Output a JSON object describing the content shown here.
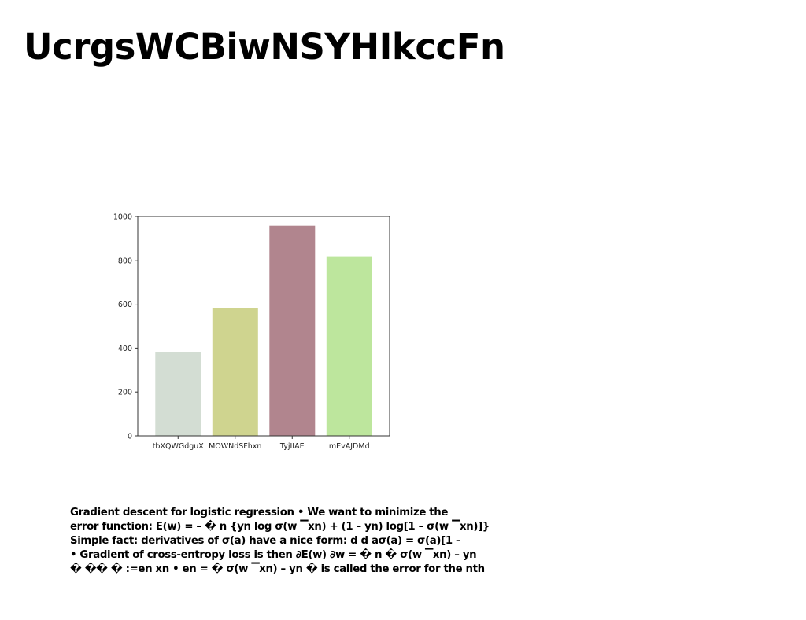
{
  "slide": {
    "title": "UcrgsWCBiwNSYHIkccFn"
  },
  "chart_data": {
    "type": "bar",
    "categories": [
      "tbXQWGdguX",
      "MOWNdSFhxn",
      "TyjIIAE",
      "mEvAJDMd"
    ],
    "values": [
      380,
      583,
      958,
      815
    ],
    "colors": [
      "#d3ddd3",
      "#cfd48f",
      "#b1858e",
      "#bde69d"
    ],
    "ylim": [
      0,
      1000
    ],
    "yticks": [
      0,
      200,
      400,
      600,
      800,
      1000
    ],
    "grid": false,
    "title": "",
    "xlabel": "",
    "ylabel": ""
  },
  "body": {
    "lines": [
      "Gradient descent for logistic regression • We want to minimize the",
      "error function: E(w) = – � n {yn log σ(w ▔xn) + (1 – yn) log[1 – σ(w ▔xn)]}",
      "Simple fact: derivatives of σ(a) have a nice form: d d aσ(a) = σ(a)[1 –",
      "• Gradient of cross-entropy loss is then ∂E(w) ∂w = � n � σ(w ▔xn) – yn",
      "� �� � :=en xn • en = � σ(w ▔xn) – yn � is called the error for the nth"
    ]
  }
}
